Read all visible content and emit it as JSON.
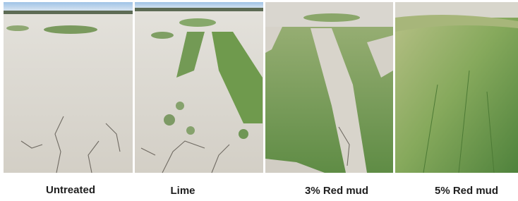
{
  "panels": [
    {
      "caption": "Untreated"
    },
    {
      "caption": "Lime"
    },
    {
      "caption": "3% Red mud"
    },
    {
      "caption": "5% Red mud"
    }
  ]
}
